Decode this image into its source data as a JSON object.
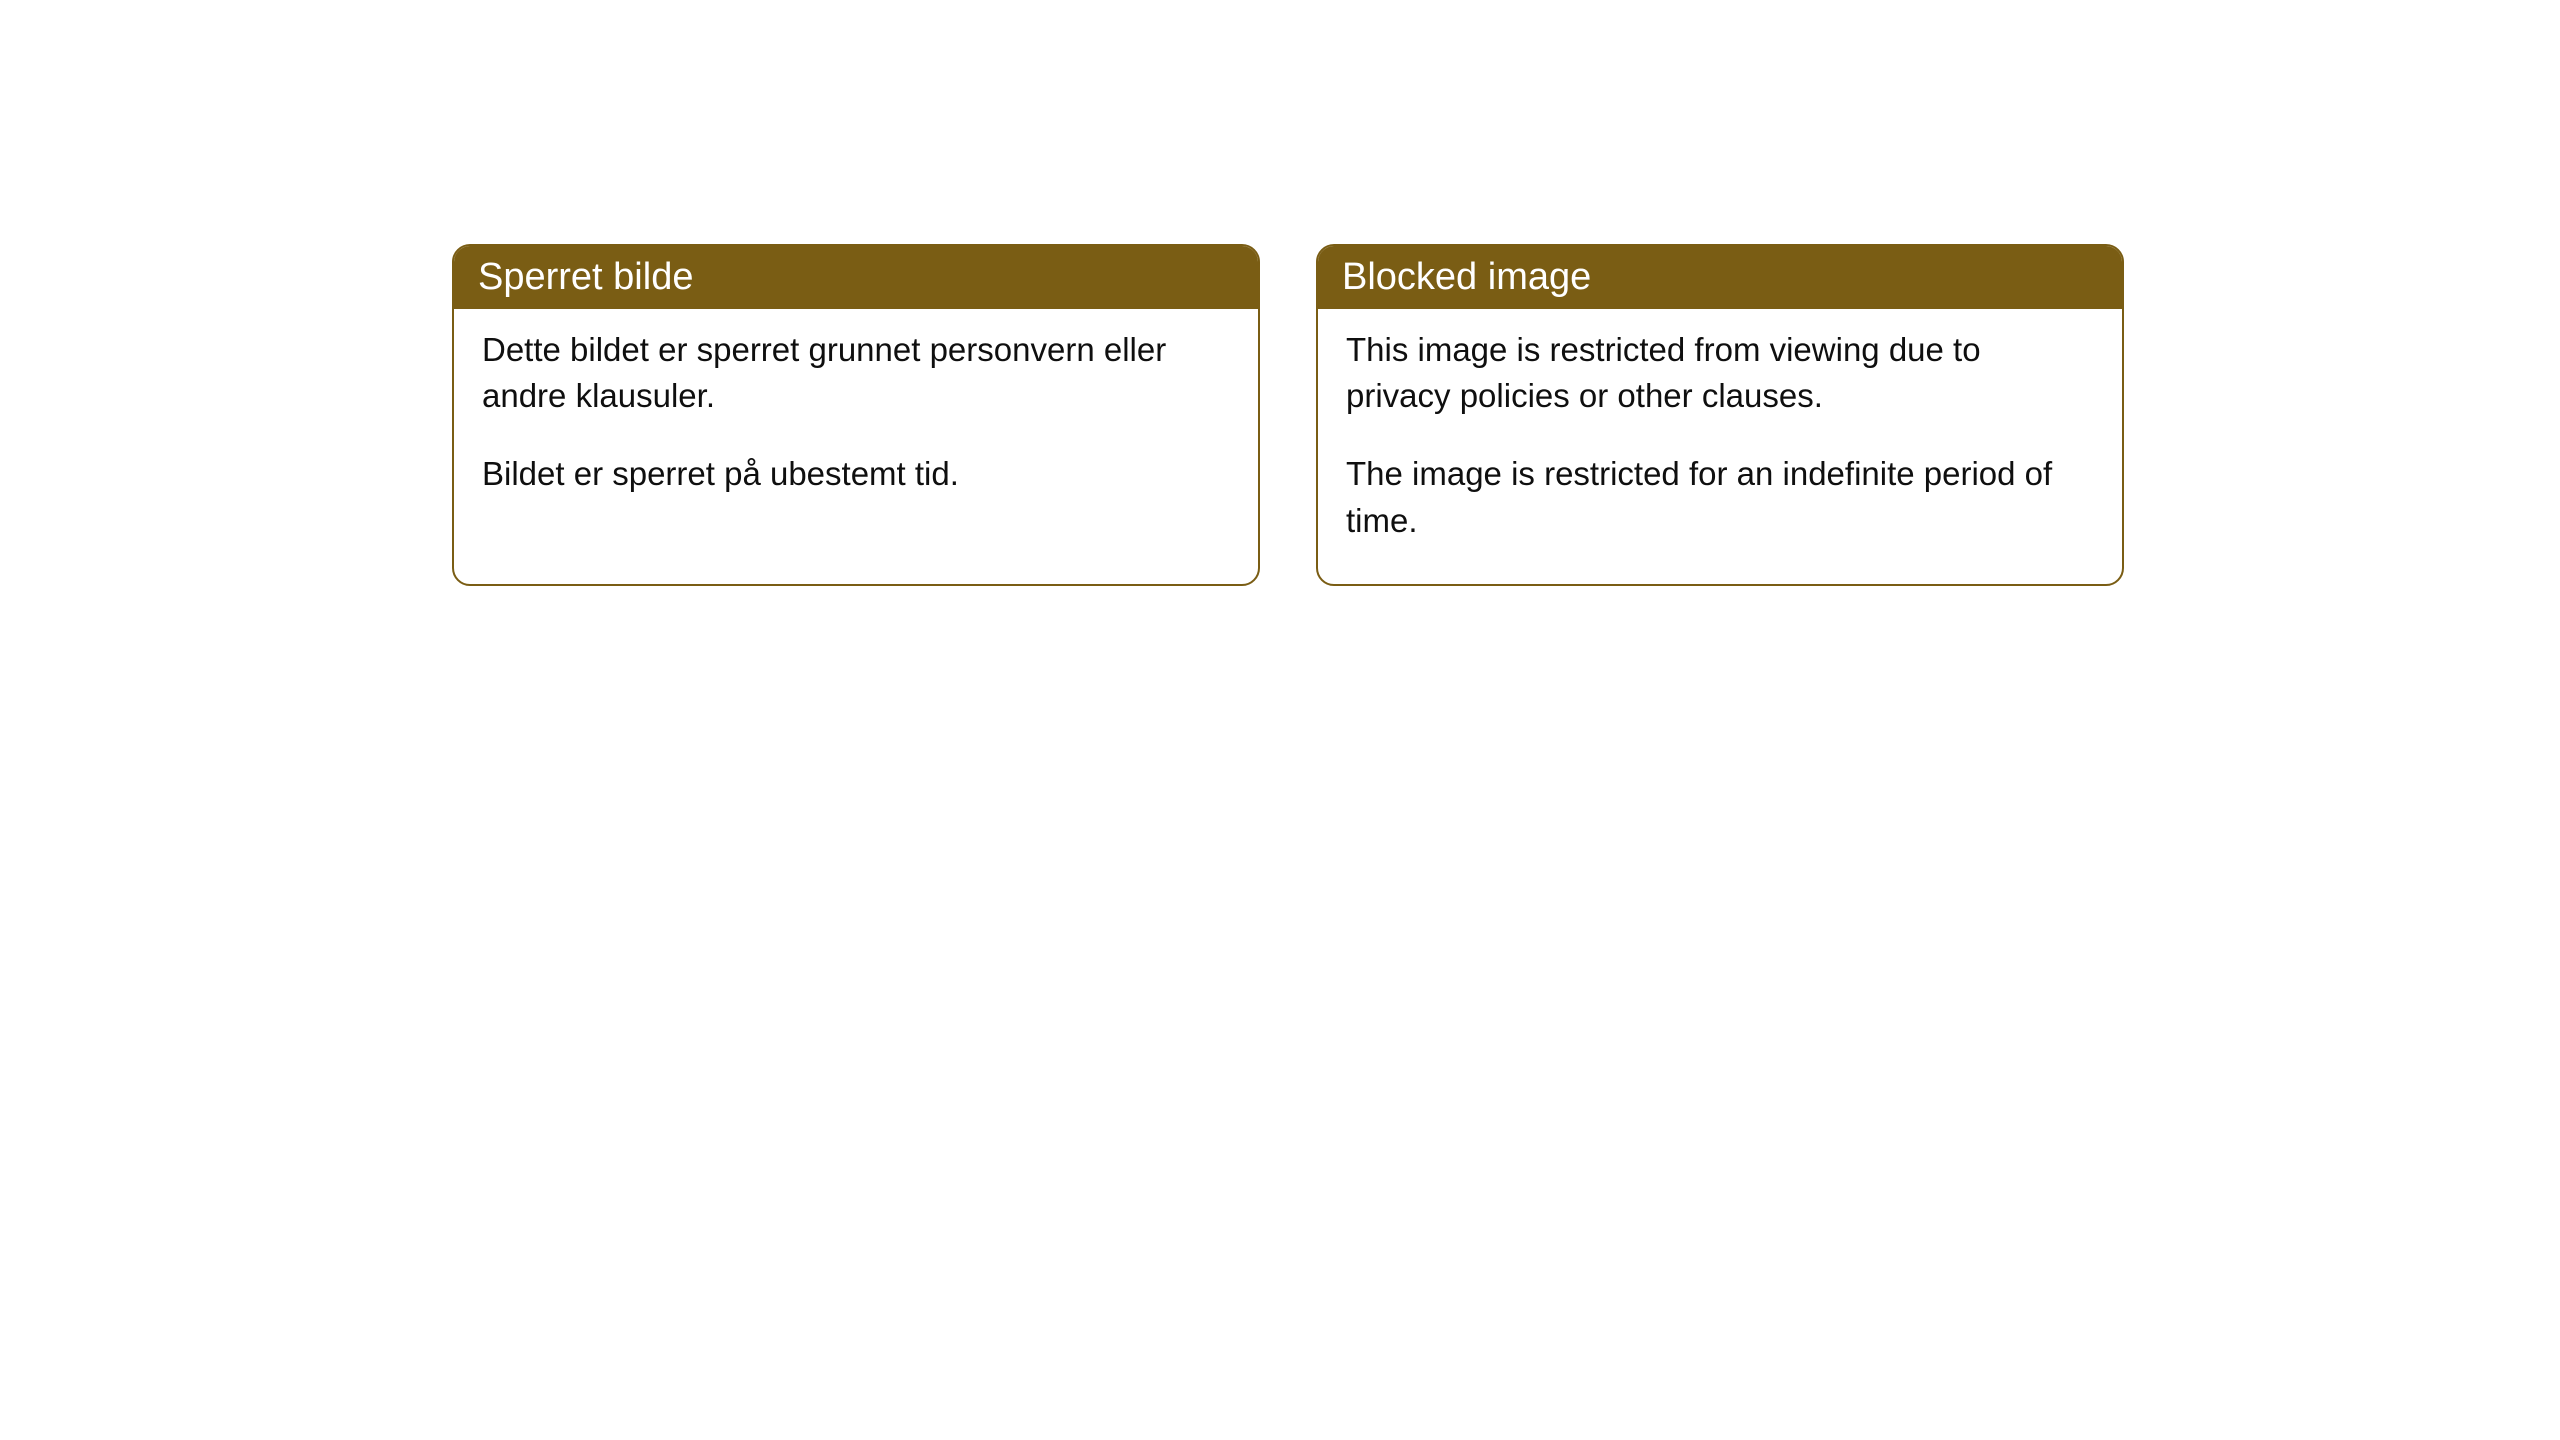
{
  "cards": [
    {
      "title": "Sperret bilde",
      "paragraph1": "Dette bildet er sperret grunnet personvern eller andre klausuler.",
      "paragraph2": "Bildet er sperret på ubestemt tid."
    },
    {
      "title": "Blocked image",
      "paragraph1": "This image is restricted from viewing due to privacy policies or other clauses.",
      "paragraph2": "The image is restricted for an indefinite period of time."
    }
  ],
  "styling": {
    "header_background_color": "#7a5d14",
    "header_text_color": "#ffffff",
    "card_border_color": "#7a5d14",
    "card_border_radius": 18,
    "card_background_color": "#ffffff",
    "body_text_color": "#0f0f0f",
    "page_background_color": "#ffffff",
    "header_font_size": 38,
    "body_font_size": 33
  }
}
